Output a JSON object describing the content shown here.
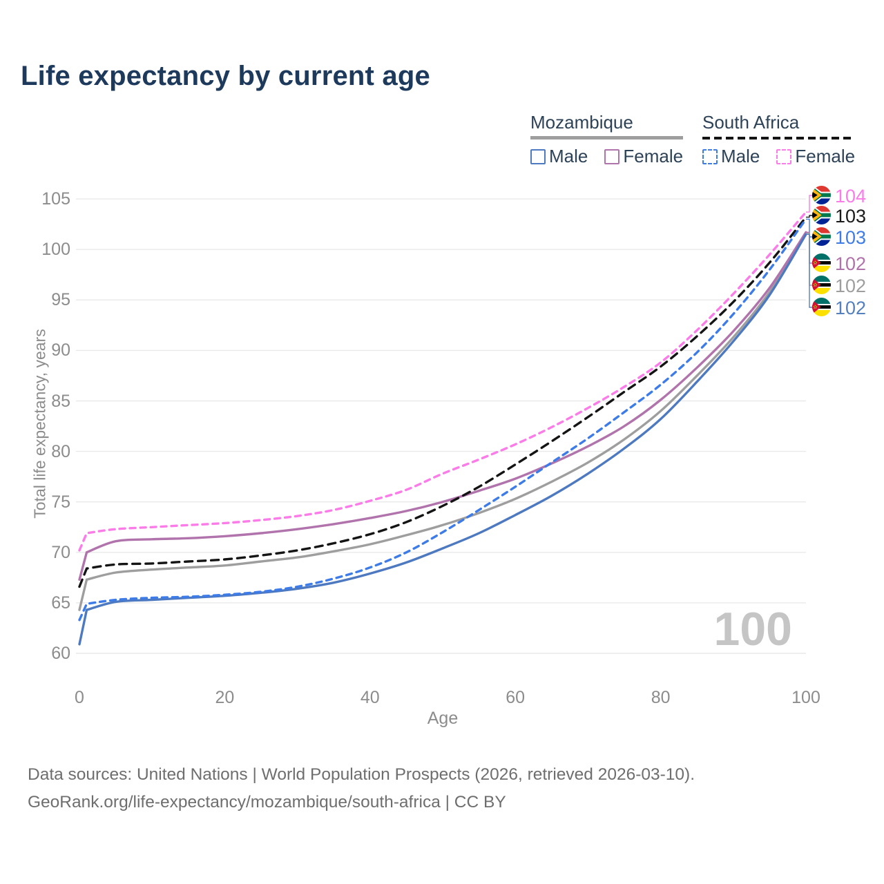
{
  "title": "Life expectancy by current age",
  "legend": {
    "groups": [
      {
        "name": "Mozambique",
        "style": "solid",
        "underline_color": "#9e9e9e",
        "items": [
          {
            "label": "Male",
            "color": "#4d79c1",
            "dashed": false
          },
          {
            "label": "Female",
            "color": "#b173ac",
            "dashed": false
          }
        ]
      },
      {
        "name": "South Africa",
        "style": "dashed",
        "underline_color": "#141414",
        "items": [
          {
            "label": "Male",
            "color": "#3d7ce8",
            "dashed": true
          },
          {
            "label": "Female",
            "color": "#fb7ce8",
            "dashed": true
          }
        ]
      }
    ]
  },
  "hover": {
    "age_label": "100"
  },
  "end_labels": [
    {
      "value": "104",
      "color": "#fb7ce8",
      "flag": "za",
      "series": "sa_female"
    },
    {
      "value": "103",
      "color": "#1a1a1a",
      "flag": "za",
      "series": "sa_both"
    },
    {
      "value": "103",
      "color": "#3d7ce8",
      "flag": "za",
      "series": "sa_male"
    },
    {
      "value": "102",
      "color": "#b173ac",
      "flag": "mz",
      "series": "mz_female"
    },
    {
      "value": "102",
      "color": "#9e9e9e",
      "flag": "mz",
      "series": "mz_both"
    },
    {
      "value": "102",
      "color": "#5580c0",
      "flag": "mz",
      "series": "mz_male"
    }
  ],
  "chart_data": {
    "type": "line",
    "title": "Life expectancy by current age",
    "xlabel": "Age",
    "ylabel": "Total life expectancy, years",
    "xlim": [
      0,
      100
    ],
    "ylim": [
      60,
      105
    ],
    "x_ticks": [
      0,
      20,
      40,
      60,
      80,
      100
    ],
    "y_ticks": [
      60,
      65,
      70,
      75,
      80,
      85,
      90,
      95,
      100,
      105
    ],
    "grid": "horizontal",
    "legend_position": "top-right",
    "x": [
      0,
      1,
      5,
      10,
      15,
      20,
      25,
      30,
      35,
      40,
      45,
      50,
      55,
      60,
      65,
      70,
      75,
      80,
      85,
      90,
      95,
      100
    ],
    "series": [
      {
        "id": "mz_both",
        "name": "Mozambique",
        "sex": "Both sexes",
        "color": "#9e9e9e",
        "dashed": false,
        "values": [
          64.3,
          67.3,
          68.0,
          68.3,
          68.5,
          68.7,
          69.1,
          69.5,
          70.1,
          70.8,
          71.7,
          72.7,
          73.9,
          75.3,
          77.0,
          78.9,
          81.2,
          84.0,
          87.5,
          91.3,
          95.8,
          101.6
        ]
      },
      {
        "id": "mz_female",
        "name": "Mozambique",
        "sex": "Female",
        "color": "#b173ac",
        "dashed": false,
        "values": [
          67.3,
          70.0,
          71.1,
          71.3,
          71.4,
          71.6,
          71.9,
          72.3,
          72.8,
          73.4,
          74.1,
          75.0,
          76.1,
          77.3,
          78.8,
          80.5,
          82.5,
          85.1,
          88.3,
          91.9,
          96.2,
          101.7
        ]
      },
      {
        "id": "mz_male",
        "name": "Mozambique",
        "sex": "Male",
        "color": "#4d79c1",
        "dashed": false,
        "values": [
          60.9,
          64.3,
          65.1,
          65.3,
          65.5,
          65.7,
          66.0,
          66.4,
          67.0,
          67.9,
          69.0,
          70.4,
          71.9,
          73.7,
          75.6,
          77.8,
          80.3,
          83.2,
          86.9,
          90.9,
          95.5,
          101.5
        ]
      },
      {
        "id": "sa_both",
        "name": "South Africa",
        "sex": "Both sexes",
        "color": "#141414",
        "dashed": true,
        "values": [
          66.6,
          68.4,
          68.8,
          68.9,
          69.1,
          69.3,
          69.7,
          70.2,
          70.9,
          71.8,
          73.0,
          74.6,
          76.5,
          78.7,
          81.0,
          83.4,
          85.9,
          88.4,
          91.4,
          94.8,
          98.7,
          103.2
        ]
      },
      {
        "id": "sa_male",
        "name": "South Africa",
        "sex": "Male",
        "color": "#3d7ce8",
        "dashed": true,
        "values": [
          63.3,
          64.9,
          65.3,
          65.5,
          65.6,
          65.8,
          66.1,
          66.6,
          67.4,
          68.5,
          70.0,
          72.0,
          74.2,
          76.5,
          78.9,
          81.3,
          83.9,
          86.6,
          89.8,
          93.6,
          98.0,
          103.0
        ]
      },
      {
        "id": "sa_female",
        "name": "South Africa",
        "sex": "Female",
        "color": "#fb7ce8",
        "dashed": true,
        "values": [
          70.2,
          71.9,
          72.3,
          72.5,
          72.7,
          72.9,
          73.2,
          73.6,
          74.2,
          75.1,
          76.2,
          77.8,
          79.2,
          80.7,
          82.4,
          84.3,
          86.4,
          88.8,
          92.0,
          95.6,
          99.5,
          103.7
        ]
      }
    ]
  },
  "footer": {
    "line1": "Data sources: United Nations | World Population Prospects (2026, retrieved 2026-03-10).",
    "line2": "GeoRank.org/life-expectancy/mozambique/south-africa | CC BY"
  }
}
